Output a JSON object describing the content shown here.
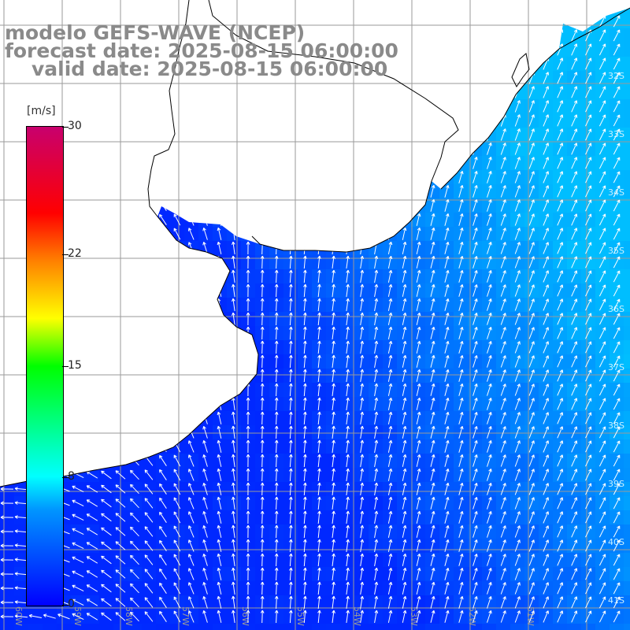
{
  "title": {
    "line1": "modelo GEFS-WAVE (NCEP)",
    "line2": "forecast date: 2025-08-15 06:00:00",
    "line3": "valid date: 2025-08-15 06:00:00"
  },
  "colorbar": {
    "unit": "[m/s]",
    "ticks": [
      {
        "label": "30",
        "value": 30
      },
      {
        "label": "22",
        "value": 22
      },
      {
        "label": "15",
        "value": 15
      },
      {
        "label": "8",
        "value": 8
      },
      {
        "label": "0",
        "value": 0
      }
    ],
    "colors": [
      "#0000ff",
      "#0095ff",
      "#00ffff",
      "#00ff00",
      "#ffff00",
      "#ff8000",
      "#ff0000",
      "#c8006e"
    ]
  },
  "lon_labels": [
    "60W",
    "59W",
    "58W",
    "57W",
    "56W",
    "55W",
    "54W",
    "53W",
    "52W",
    "51W"
  ],
  "lat_labels": [
    "32S",
    "33S",
    "34S",
    "35S",
    "36S",
    "37S",
    "38S",
    "39S",
    "40S",
    "41S"
  ],
  "colors": {
    "land": "#ffffff",
    "grid": "#9a9a9a",
    "coast": "#000000",
    "arrows": "#ffffff",
    "title": "#8a8a8a"
  }
}
